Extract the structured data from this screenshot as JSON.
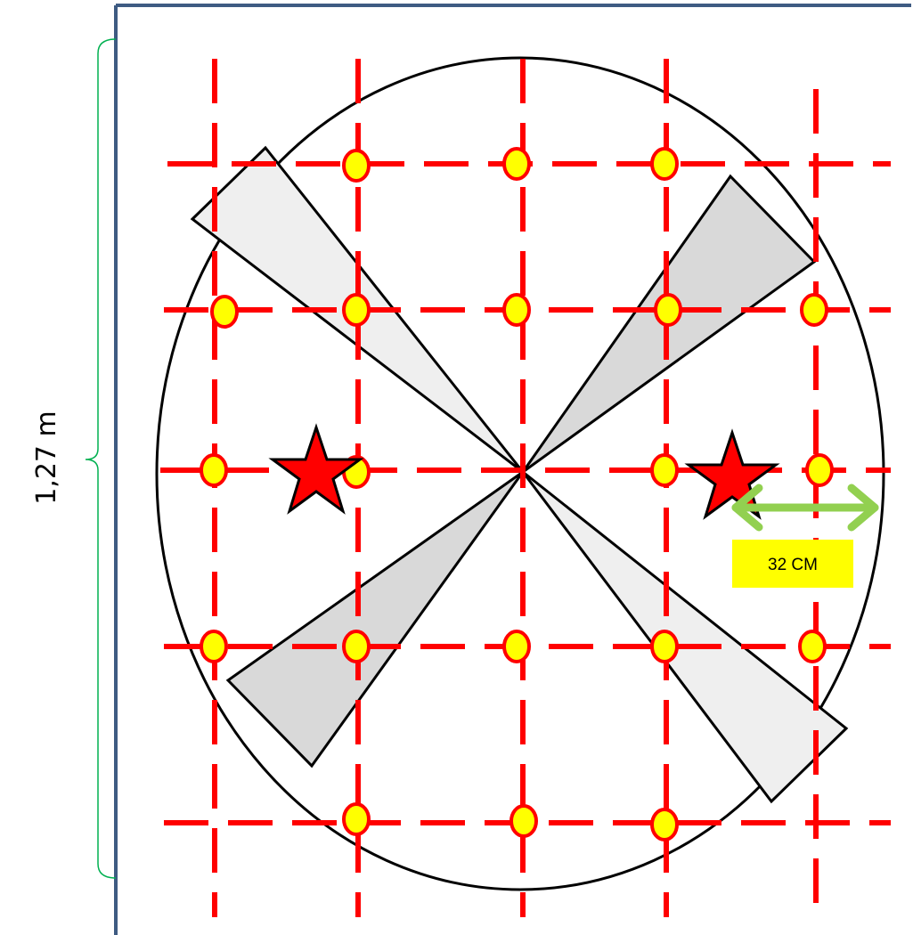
{
  "dimension": {
    "label": "1,27 m"
  },
  "measurement": {
    "label": "32 CM"
  },
  "colors": {
    "frame": "#3e5b82",
    "grid_line": "#ff0000",
    "marker_fill": "#ffff00",
    "marker_stroke": "#ff0000",
    "star_fill": "#ff0000",
    "blade_light": "#efefef",
    "blade_dark": "#d9d9d9",
    "arrow": "#92d050",
    "brace": "#00b050",
    "tag_background": "#ffff00"
  },
  "icons": {
    "star": "star-icon",
    "marker": "circle-marker-icon",
    "arrow": "double-arrow-icon"
  }
}
